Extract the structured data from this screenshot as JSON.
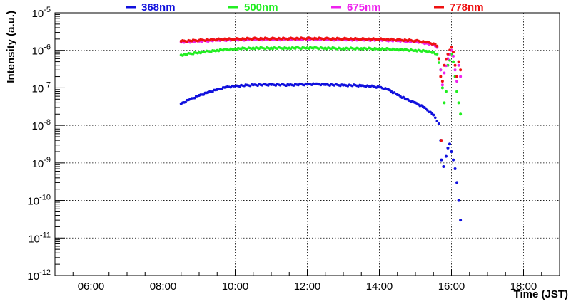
{
  "chart_data": {
    "type": "scatter",
    "title": "",
    "xlabel": "Time (JST)",
    "ylabel": "Intensity (a.u.)",
    "x_unit": "hours (JST)",
    "xlim": [
      5.0,
      19.0
    ],
    "ylim_log10": [
      -12,
      -5
    ],
    "y_scale": "log",
    "grid": true,
    "legend_position": "top",
    "x_ticks": [
      {
        "value": 6,
        "label": "06:00"
      },
      {
        "value": 8,
        "label": "08:00"
      },
      {
        "value": 10,
        "label": "10:00"
      },
      {
        "value": 12,
        "label": "12:00"
      },
      {
        "value": 14,
        "label": "14:00"
      },
      {
        "value": 16,
        "label": "16:00"
      },
      {
        "value": 18,
        "label": "18:00"
      }
    ],
    "y_ticks": [
      {
        "exp": -5,
        "base": "10",
        "sup": "-5"
      },
      {
        "exp": -6,
        "base": "10",
        "sup": "-6"
      },
      {
        "exp": -7,
        "base": "10",
        "sup": "-7"
      },
      {
        "exp": -8,
        "base": "10",
        "sup": "-8"
      },
      {
        "exp": -9,
        "base": "10",
        "sup": "-9"
      },
      {
        "exp": -10,
        "base": "10",
        "sup": "-10"
      },
      {
        "exp": -11,
        "base": "10",
        "sup": "-11"
      },
      {
        "exp": -12,
        "base": "10",
        "sup": "-12"
      }
    ],
    "series": [
      {
        "name": "368nm",
        "color": "#1010dd",
        "points": [
          [
            8.5,
            3.8e-08
          ],
          [
            8.75,
            5e-08
          ],
          [
            9.0,
            6.3e-08
          ],
          [
            9.25,
            7.6e-08
          ],
          [
            9.5,
            9e-08
          ],
          [
            9.75,
            1.05e-07
          ],
          [
            10.0,
            1.12e-07
          ],
          [
            10.5,
            1.2e-07
          ],
          [
            11.0,
            1.22e-07
          ],
          [
            11.5,
            1.2e-07
          ],
          [
            12.0,
            1.25e-07
          ],
          [
            12.25,
            1.28e-07
          ],
          [
            12.5,
            1.22e-07
          ],
          [
            13.0,
            1.18e-07
          ],
          [
            13.5,
            1.15e-07
          ],
          [
            14.0,
            1.05e-07
          ],
          [
            14.25,
            9e-08
          ],
          [
            14.5,
            6.6e-08
          ],
          [
            14.75,
            5e-08
          ],
          [
            15.0,
            4e-08
          ],
          [
            15.25,
            3e-08
          ],
          [
            15.5,
            1.9e-08
          ],
          [
            15.65,
            1.1e-08
          ],
          [
            15.7,
            4e-09
          ],
          [
            15.72,
            1.2e-09
          ],
          [
            15.78,
            8e-10
          ],
          [
            15.85,
            1.5e-09
          ],
          [
            15.9,
            2.5e-09
          ],
          [
            15.95,
            3.2e-09
          ],
          [
            16.0,
            2e-09
          ],
          [
            16.05,
            1.2e-09
          ],
          [
            16.1,
            7e-10
          ],
          [
            16.15,
            3e-10
          ],
          [
            16.2,
            1e-10
          ],
          [
            16.25,
            3e-11
          ]
        ]
      },
      {
        "name": "500nm",
        "color": "#22ee22",
        "points": [
          [
            8.5,
            7.5e-07
          ],
          [
            9.0,
            8.8e-07
          ],
          [
            9.5,
            1e-06
          ],
          [
            10.0,
            1.1e-06
          ],
          [
            10.5,
            1.15e-06
          ],
          [
            11.0,
            1.15e-06
          ],
          [
            11.5,
            1.15e-06
          ],
          [
            12.0,
            1.17e-06
          ],
          [
            12.5,
            1.15e-06
          ],
          [
            13.0,
            1.12e-06
          ],
          [
            13.5,
            1.12e-06
          ],
          [
            14.0,
            1.1e-06
          ],
          [
            14.5,
            1.06e-06
          ],
          [
            15.0,
            1e-06
          ],
          [
            15.3,
            9.5e-07
          ],
          [
            15.5,
            8.8e-07
          ],
          [
            15.6,
            8e-07
          ],
          [
            15.7,
            3e-07
          ],
          [
            15.75,
            1e-07
          ],
          [
            15.8,
            4e-08
          ],
          [
            15.85,
            8e-08
          ],
          [
            15.9,
            4e-07
          ],
          [
            16.0,
            8e-07
          ],
          [
            16.05,
            5e-07
          ],
          [
            16.1,
            2e-07
          ],
          [
            16.15,
            8e-08
          ],
          [
            16.2,
            4e-08
          ],
          [
            16.25,
            2e-08
          ]
        ]
      },
      {
        "name": "675nm",
        "color": "#ee22ee",
        "points": [
          [
            8.5,
            1.65e-06
          ],
          [
            9.0,
            1.75e-06
          ],
          [
            9.5,
            1.85e-06
          ],
          [
            10.0,
            1.9e-06
          ],
          [
            10.5,
            1.95e-06
          ],
          [
            11.0,
            1.95e-06
          ],
          [
            11.5,
            1.95e-06
          ],
          [
            12.0,
            1.98e-06
          ],
          [
            12.5,
            1.95e-06
          ],
          [
            13.0,
            1.93e-06
          ],
          [
            13.5,
            1.9e-06
          ],
          [
            14.0,
            1.88e-06
          ],
          [
            14.5,
            1.8e-06
          ],
          [
            15.0,
            1.7e-06
          ],
          [
            15.3,
            1.55e-06
          ],
          [
            15.5,
            1.4e-06
          ],
          [
            15.6,
            1.2e-06
          ],
          [
            15.7,
            3e-07
          ],
          [
            15.75,
            1.2e-07
          ],
          [
            15.8,
            2.5e-07
          ],
          [
            15.9,
            6e-07
          ],
          [
            16.0,
            1e-06
          ],
          [
            16.05,
            7e-07
          ],
          [
            16.1,
            3e-07
          ],
          [
            16.15,
            1.5e-07
          ],
          [
            16.2,
            4e-07
          ],
          [
            16.25,
            2e-07
          ]
        ]
      },
      {
        "name": "778nm",
        "color": "#ee1111",
        "points": [
          [
            8.5,
            1.75e-06
          ],
          [
            9.0,
            1.85e-06
          ],
          [
            9.5,
            1.95e-06
          ],
          [
            10.0,
            2e-06
          ],
          [
            10.5,
            2.05e-06
          ],
          [
            11.0,
            2.05e-06
          ],
          [
            11.5,
            2.05e-06
          ],
          [
            12.0,
            2.08e-06
          ],
          [
            12.5,
            2.05e-06
          ],
          [
            13.0,
            2.03e-06
          ],
          [
            13.5,
            2e-06
          ],
          [
            14.0,
            1.98e-06
          ],
          [
            14.5,
            1.9e-06
          ],
          [
            15.0,
            1.8e-06
          ],
          [
            15.3,
            1.65e-06
          ],
          [
            15.5,
            1.5e-06
          ],
          [
            15.6,
            1.3e-06
          ],
          [
            15.65,
            6e-07
          ],
          [
            15.7,
            2e-07
          ],
          [
            15.75,
            1.5e-07
          ],
          [
            15.8,
            4e-07
          ],
          [
            15.9,
            8e-07
          ],
          [
            16.0,
            1.2e-06
          ],
          [
            16.05,
            9e-07
          ],
          [
            16.1,
            4e-07
          ],
          [
            16.15,
            2e-07
          ],
          [
            16.2,
            5e-07
          ],
          [
            16.25,
            3e-07
          ],
          [
            15.72,
            4e-09
          ]
        ]
      }
    ]
  }
}
